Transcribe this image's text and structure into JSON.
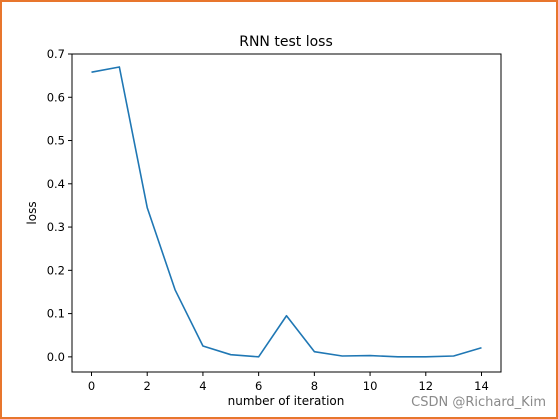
{
  "watermark": "CSDN @Richard_Kim",
  "colors": {
    "line": "#1f77b4",
    "border": "#e8762d",
    "watermark": "#8a8a8a"
  },
  "chart_data": {
    "type": "line",
    "title": "RNN test loss",
    "xlabel": "number of iteration",
    "ylabel": "loss",
    "xlim": [
      -0.7,
      14.7
    ],
    "ylim": [
      -0.035,
      0.7
    ],
    "xticks": [
      0,
      2,
      4,
      6,
      8,
      10,
      12,
      14
    ],
    "xtick_labels": [
      "0",
      "2",
      "4",
      "6",
      "8",
      "10",
      "12",
      "14"
    ],
    "yticks": [
      0.0,
      0.1,
      0.2,
      0.3,
      0.4,
      0.5,
      0.6,
      0.7
    ],
    "ytick_labels": [
      "0.0",
      "0.1",
      "0.2",
      "0.3",
      "0.4",
      "0.5",
      "0.6",
      "0.7"
    ],
    "grid": false,
    "series": [
      {
        "x": [
          0,
          1,
          2,
          3,
          4,
          5,
          6,
          7,
          8,
          9,
          10,
          11,
          12,
          13,
          14
        ],
        "values": [
          0.658,
          0.67,
          0.345,
          0.155,
          0.025,
          0.005,
          0.0,
          0.095,
          0.012,
          0.002,
          0.003,
          0.0,
          0.0,
          0.002,
          0.021
        ]
      }
    ]
  }
}
